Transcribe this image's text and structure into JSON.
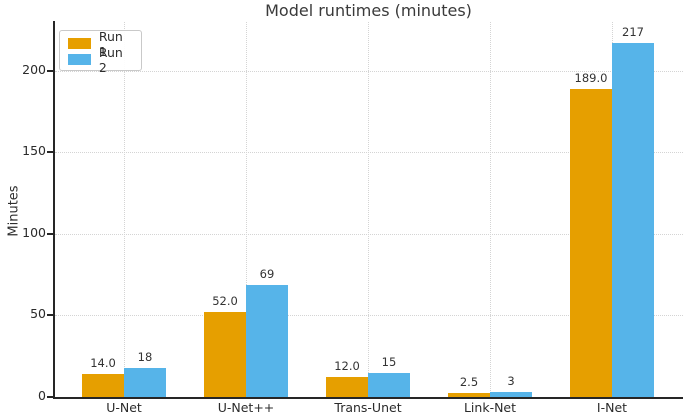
{
  "chart_data": {
    "type": "bar",
    "title": "Model runtimes (minutes)",
    "ylabel": "Minutes",
    "xlabel": "",
    "categories": [
      "U-Net",
      "U-Net++",
      "Trans-Unet",
      "Link-Net",
      "I-Net"
    ],
    "series": [
      {
        "name": "Run 1",
        "color": "#E69F00",
        "values": [
          14,
          52,
          12,
          2.5,
          189
        ],
        "labels": [
          "14.0",
          "52.0",
          "12.0",
          "2.5",
          "189.0"
        ]
      },
      {
        "name": "Run 2",
        "color": "#56B4E9",
        "values": [
          18,
          69,
          15,
          3,
          217
        ],
        "labels": [
          "18",
          "69",
          "15",
          "3",
          "217"
        ]
      }
    ],
    "ylim": [
      0,
      230
    ],
    "yticks": [
      0,
      50,
      100,
      150,
      200
    ],
    "grid": "dotted, both axes",
    "legend_position": "upper-left",
    "axis_color": "#262626",
    "grid_color": "#d4d4d4"
  }
}
